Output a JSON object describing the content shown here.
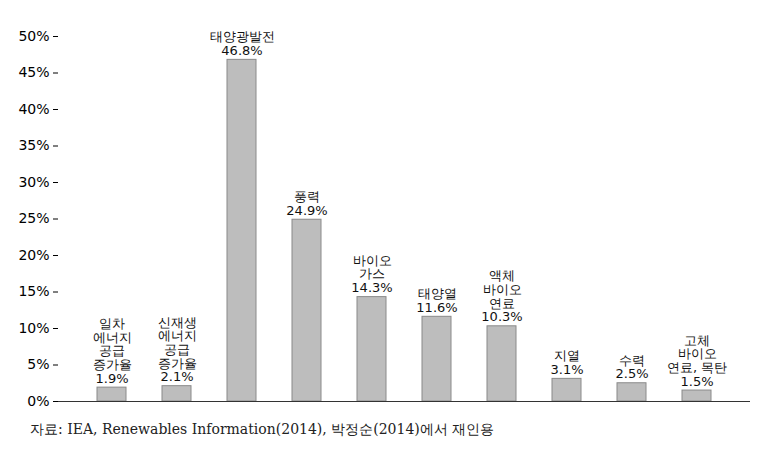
{
  "chart_data": {
    "type": "bar",
    "categories": [
      "일차\n에너지\n공급\n증가율",
      "신재생\n에너지\n공급\n증가율",
      "태양광발전",
      "풍력",
      "바이오\n가스",
      "태양열",
      "액체\n바이오\n연료",
      "지열",
      "수력",
      "고체\n바이오\n연료, 목탄"
    ],
    "values": [
      1.9,
      2.1,
      46.8,
      24.9,
      14.3,
      11.6,
      10.3,
      3.1,
      2.5,
      1.5
    ],
    "value_labels": [
      "1.9%",
      "2.1%",
      "46.8%",
      "24.9%",
      "14.3%",
      "11.6%",
      "10.3%",
      "3.1%",
      "2.5%",
      "1.5%"
    ],
    "color": "#bdbdbd",
    "ylim": [
      0,
      50
    ],
    "yticks": [
      {
        "value": 0,
        "label": "0%"
      },
      {
        "value": 5,
        "label": "5%"
      },
      {
        "value": 10,
        "label": "10%"
      },
      {
        "value": 15,
        "label": "15%"
      },
      {
        "value": 20,
        "label": "20%"
      },
      {
        "value": 25,
        "label": "25%"
      },
      {
        "value": 30,
        "label": "30%"
      },
      {
        "value": 35,
        "label": "35%"
      },
      {
        "value": 40,
        "label": "40%"
      },
      {
        "value": 45,
        "label": "45%"
      },
      {
        "value": 50,
        "label": "50%"
      }
    ],
    "grid": false,
    "data_labels": true,
    "tick_labels": "y",
    "caption": "자료: IEA, Renewables Information(2014), 박정순(2014)에서 재인용"
  }
}
